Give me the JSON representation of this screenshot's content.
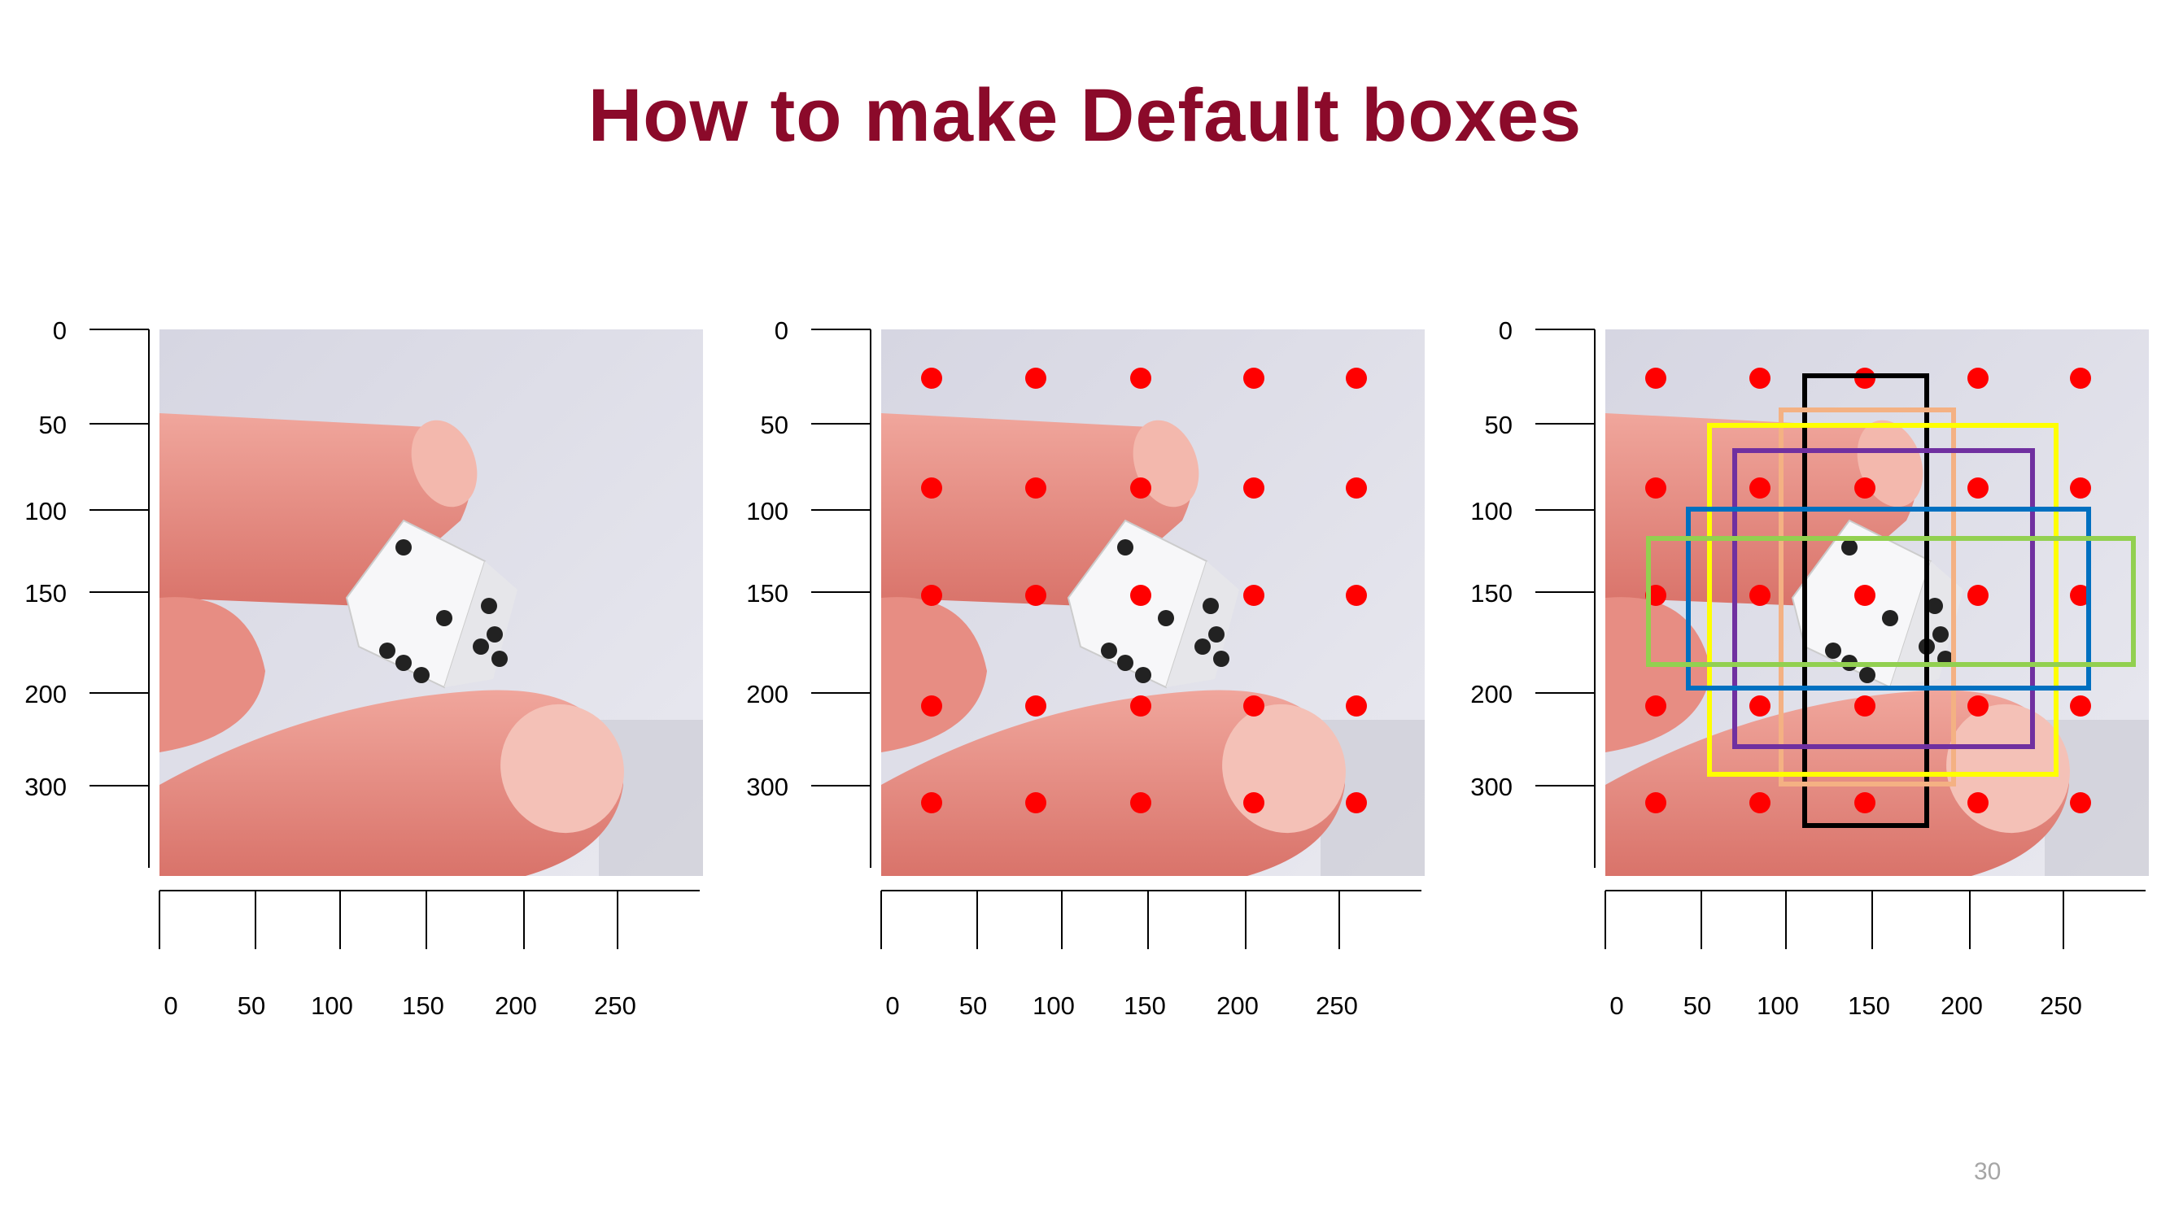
{
  "slide": {
    "title": "How to make Default boxes",
    "page_number": "30"
  },
  "axes": {
    "y_tick_labels": [
      "0",
      "50",
      "100",
      "150",
      "200",
      "300"
    ],
    "x_tick_labels": [
      "0",
      "50",
      "100",
      "150",
      "200",
      "250"
    ]
  },
  "panels": [
    {
      "id": "panel-original",
      "show_points": false,
      "show_boxes": false
    },
    {
      "id": "panel-center-points",
      "show_points": true,
      "show_boxes": false
    },
    {
      "id": "panel-default-boxes",
      "show_points": true,
      "show_boxes": true
    }
  ],
  "center_points": {
    "color": "#ff0000",
    "columns": 5,
    "rows": 5
  },
  "default_boxes": [
    {
      "name": "black-box",
      "color": "#000000"
    },
    {
      "name": "peach-box",
      "color": "#f4b183"
    },
    {
      "name": "yellow-box",
      "color": "#ffff00"
    },
    {
      "name": "purple-box",
      "color": "#7030a0"
    },
    {
      "name": "blue-box",
      "color": "#0070c0"
    },
    {
      "name": "green-box",
      "color": "#92d050"
    }
  ],
  "colors": {
    "title": "#8b0a2a",
    "page_number": "#a6a6a6",
    "axis": "#000000"
  }
}
